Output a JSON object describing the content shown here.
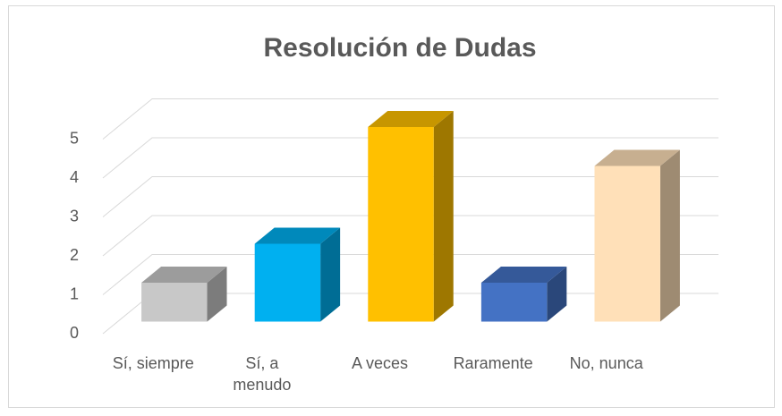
{
  "chart_data": {
    "type": "bar3d",
    "title": "Resolución de Dudas",
    "categories": [
      "Sí, siempre",
      "Sí, a menudo",
      "A veces",
      "Raramente",
      "No, nunca"
    ],
    "values": [
      1,
      2,
      5,
      1,
      4
    ],
    "colors": [
      "#c8c8c8",
      "#00b0f0",
      "#ffc000",
      "#4472c4",
      "#ffe0b8"
    ],
    "ylim": [
      0,
      5
    ],
    "yticks": [
      0,
      1,
      2,
      3,
      4,
      5
    ],
    "grid": true
  }
}
